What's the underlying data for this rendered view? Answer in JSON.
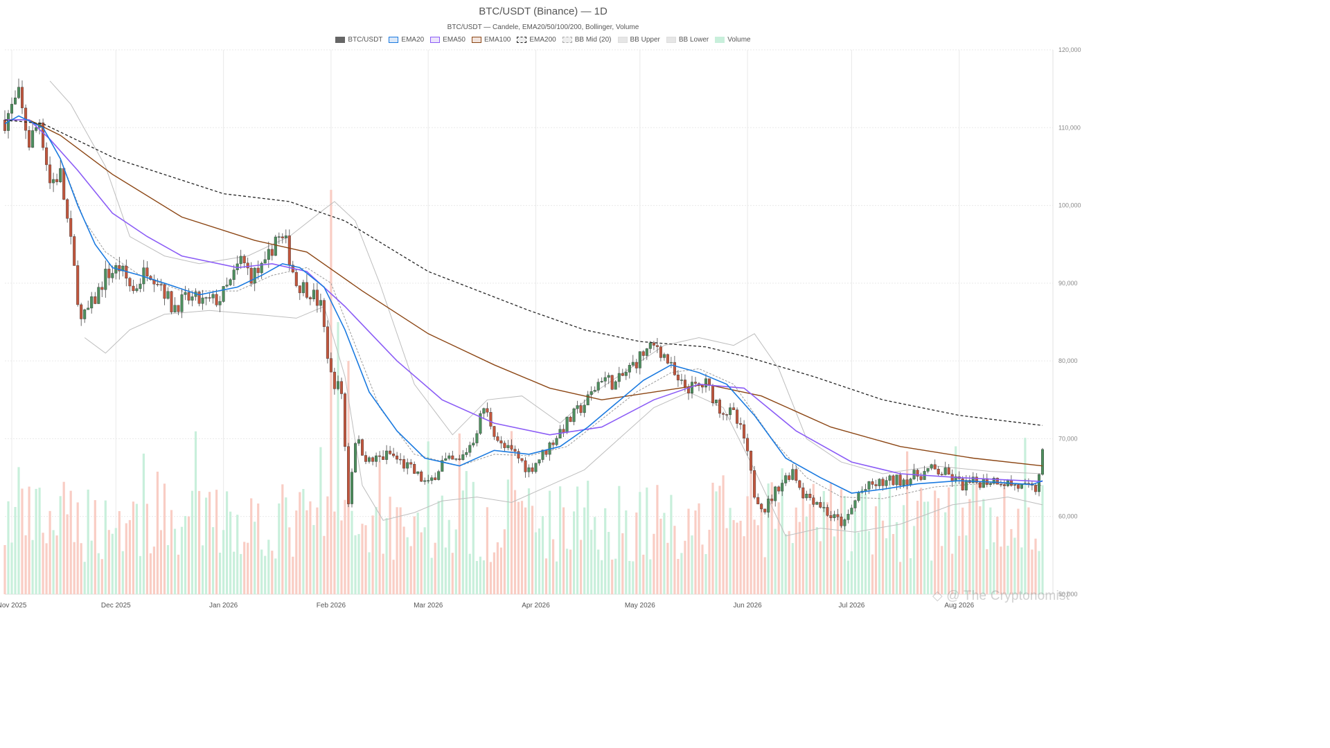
{
  "chart_data": {
    "type": "candlestick",
    "title": "BTC/USDT (Binance) — 1D",
    "subtitle": "BTC/USDT — Candele, EMA20/50/100/200, Bollinger, Volume",
    "legend": [
      {
        "name": "BTC/USDT",
        "fill": "#666666",
        "stroke": "#666666",
        "dash": ""
      },
      {
        "name": "EMA20",
        "fill": "#dbe8f8",
        "stroke": "#1a7ae0",
        "dash": ""
      },
      {
        "name": "EMA50",
        "fill": "#ece4fb",
        "stroke": "#8b5cf6",
        "dash": ""
      },
      {
        "name": "EMA100",
        "fill": "#f1e3dc",
        "stroke": "#8b4513",
        "dash": ""
      },
      {
        "name": "EMA200",
        "fill": "#eeeeee",
        "stroke": "#222222",
        "dash": "3,2"
      },
      {
        "name": "BB Mid (20)",
        "fill": "#eeeeee",
        "stroke": "#aaaaaa",
        "dash": "2,2"
      },
      {
        "name": "BB Upper",
        "fill": "#e6e6e6",
        "stroke": "#dddddd",
        "dash": ""
      },
      {
        "name": "BB Lower",
        "fill": "#e6e6e6",
        "stroke": "#dddddd",
        "dash": ""
      },
      {
        "name": "Volume",
        "fill": "#c8efdb",
        "stroke": "#c8efdb",
        "dash": ""
      }
    ],
    "y_axis": {
      "ticks": [
        "50,000",
        "60,000",
        "70,000",
        "80,000",
        "90,000",
        "100,000",
        "110,000",
        "120,000"
      ],
      "values": [
        50000,
        60000,
        70000,
        80000,
        90000,
        100000,
        110000,
        120000
      ],
      "ylim": [
        50000,
        120000
      ],
      "position": "right"
    },
    "x_axis": {
      "labels": [
        "Nov 2025",
        "Dec 2025",
        "Jan 2026",
        "Feb 2026",
        "Mar 2026",
        "Apr 2026",
        "May 2026",
        "Jun 2026",
        "Jul 2026",
        "Aug 2026"
      ],
      "dates": [
        "2025-11-01",
        "2025-12-01",
        "2026-01-01",
        "2026-02-01",
        "2026-03-01",
        "2026-04-01",
        "2026-05-01",
        "2026-06-01",
        "2026-07-01",
        "2026-08-01"
      ],
      "start": "2025-10-30",
      "end": "2026-08-28"
    },
    "series": {
      "close_path": [
        [
          "2025-10-30",
          111000
        ],
        [
          "2025-11-03",
          114000
        ],
        [
          "2025-11-06",
          108000
        ],
        [
          "2025-11-09",
          111000
        ],
        [
          "2025-11-12",
          103000
        ],
        [
          "2025-11-15",
          104000
        ],
        [
          "2025-11-18",
          95000
        ],
        [
          "2025-11-21",
          85000
        ],
        [
          "2025-11-25",
          88000
        ],
        [
          "2025-11-28",
          91000
        ],
        [
          "2025-12-02",
          92000
        ],
        [
          "2025-12-06",
          89000
        ],
        [
          "2025-12-10",
          92000
        ],
        [
          "2025-12-14",
          90000
        ],
        [
          "2025-12-17",
          87000
        ],
        [
          "2025-12-22",
          88000
        ],
        [
          "2025-12-27",
          87500
        ],
        [
          "2025-12-31",
          88000
        ],
        [
          "2026-01-03",
          90000
        ],
        [
          "2026-01-06",
          93000
        ],
        [
          "2026-01-09",
          91000
        ],
        [
          "2026-01-13",
          92000
        ],
        [
          "2026-01-16",
          96000
        ],
        [
          "2026-01-19",
          95000
        ],
        [
          "2026-01-22",
          90000
        ],
        [
          "2026-01-26",
          89000
        ],
        [
          "2026-01-29",
          87000
        ],
        [
          "2026-02-01",
          78000
        ],
        [
          "2026-02-04",
          76000
        ],
        [
          "2026-02-06",
          62000
        ],
        [
          "2026-02-08",
          70000
        ],
        [
          "2026-02-12",
          67000
        ],
        [
          "2026-02-18",
          68000
        ],
        [
          "2026-02-24",
          66000
        ],
        [
          "2026-03-01",
          64000
        ],
        [
          "2026-03-05",
          67000
        ],
        [
          "2026-03-10",
          67000
        ],
        [
          "2026-03-14",
          70000
        ],
        [
          "2026-03-17",
          74000
        ],
        [
          "2026-03-22",
          69000
        ],
        [
          "2026-03-26",
          68000
        ],
        [
          "2026-03-30",
          66000
        ],
        [
          "2026-04-03",
          68000
        ],
        [
          "2026-04-08",
          71000
        ],
        [
          "2026-04-12",
          73000
        ],
        [
          "2026-04-16",
          75000
        ],
        [
          "2026-04-20",
          78000
        ],
        [
          "2026-04-24",
          77000
        ],
        [
          "2026-04-28",
          79000
        ],
        [
          "2026-05-02",
          81000
        ],
        [
          "2026-05-06",
          82000
        ],
        [
          "2026-05-09",
          80000
        ],
        [
          "2026-05-12",
          77000
        ],
        [
          "2026-05-16",
          76500
        ],
        [
          "2026-05-20",
          77000
        ],
        [
          "2026-05-24",
          74000
        ],
        [
          "2026-05-28",
          73000
        ],
        [
          "2026-05-31",
          70000
        ],
        [
          "2026-06-03",
          63000
        ],
        [
          "2026-06-06",
          61000
        ],
        [
          "2026-06-10",
          64000
        ],
        [
          "2026-06-14",
          66000
        ],
        [
          "2026-06-17",
          63000
        ],
        [
          "2026-06-21",
          62000
        ],
        [
          "2026-06-25",
          60000
        ],
        [
          "2026-06-29",
          59000
        ],
        [
          "2026-07-03",
          63000
        ],
        [
          "2026-07-07",
          64000
        ],
        [
          "2026-07-12",
          64500
        ],
        [
          "2026-07-18",
          65000
        ],
        [
          "2026-07-24",
          66000
        ],
        [
          "2026-07-28",
          65500
        ],
        [
          "2026-08-02",
          64000
        ],
        [
          "2026-08-07",
          64500
        ],
        [
          "2026-08-12",
          64800
        ],
        [
          "2026-08-17",
          64000
        ],
        [
          "2026-08-21",
          63500
        ],
        [
          "2026-08-23",
          63500
        ],
        [
          "2026-08-25",
          68000
        ]
      ],
      "ema20": [
        [
          "2025-10-30",
          110500
        ],
        [
          "2025-11-03",
          111500
        ],
        [
          "2025-11-10",
          110000
        ],
        [
          "2025-11-15",
          106000
        ],
        [
          "2025-11-20",
          100000
        ],
        [
          "2025-11-25",
          95000
        ],
        [
          "2025-11-30",
          92000
        ],
        [
          "2025-12-08",
          91000
        ],
        [
          "2025-12-15",
          90000
        ],
        [
          "2025-12-25",
          88500
        ],
        [
          "2026-01-05",
          89500
        ],
        [
          "2026-01-12",
          91000
        ],
        [
          "2026-01-18",
          92500
        ],
        [
          "2026-01-23",
          92000
        ],
        [
          "2026-01-30",
          89500
        ],
        [
          "2026-02-05",
          84000
        ],
        [
          "2026-02-12",
          76000
        ],
        [
          "2026-02-20",
          71000
        ],
        [
          "2026-02-28",
          67500
        ],
        [
          "2026-03-10",
          66500
        ],
        [
          "2026-03-20",
          68500
        ],
        [
          "2026-03-30",
          68000
        ],
        [
          "2026-04-08",
          69000
        ],
        [
          "2026-04-16",
          71500
        ],
        [
          "2026-04-24",
          74500
        ],
        [
          "2026-05-02",
          77500
        ],
        [
          "2026-05-10",
          79500
        ],
        [
          "2026-05-18",
          78500
        ],
        [
          "2026-05-26",
          77000
        ],
        [
          "2026-06-03",
          73000
        ],
        [
          "2026-06-12",
          67500
        ],
        [
          "2026-06-22",
          65000
        ],
        [
          "2026-07-01",
          63000
        ],
        [
          "2026-07-10",
          63500
        ],
        [
          "2026-07-20",
          64200
        ],
        [
          "2026-08-01",
          64600
        ],
        [
          "2026-08-12",
          64400
        ],
        [
          "2026-08-22",
          64100
        ],
        [
          "2026-08-25",
          64600
        ]
      ],
      "ema50": [
        [
          "2025-10-30",
          111000
        ],
        [
          "2025-11-06",
          111000
        ],
        [
          "2025-11-12",
          108500
        ],
        [
          "2025-11-20",
          104500
        ],
        [
          "2025-11-30",
          99000
        ],
        [
          "2025-12-10",
          96000
        ],
        [
          "2025-12-20",
          93500
        ],
        [
          "2026-01-05",
          92000
        ],
        [
          "2026-01-15",
          92500
        ],
        [
          "2026-01-25",
          91500
        ],
        [
          "2026-02-05",
          87000
        ],
        [
          "2026-02-20",
          80000
        ],
        [
          "2026-03-05",
          75000
        ],
        [
          "2026-03-20",
          72000
        ],
        [
          "2026-04-05",
          70500
        ],
        [
          "2026-04-20",
          71500
        ],
        [
          "2026-05-05",
          75000
        ],
        [
          "2026-05-18",
          77000
        ],
        [
          "2026-05-31",
          76500
        ],
        [
          "2026-06-15",
          71000
        ],
        [
          "2026-07-01",
          67000
        ],
        [
          "2026-07-15",
          65500
        ],
        [
          "2026-08-01",
          65000
        ],
        [
          "2026-08-15",
          64700
        ],
        [
          "2026-08-25",
          64500
        ]
      ],
      "ema100": [
        [
          "2025-10-30",
          111000
        ],
        [
          "2025-11-06",
          111000
        ],
        [
          "2025-11-15",
          109000
        ],
        [
          "2025-11-30",
          104000
        ],
        [
          "2025-12-20",
          98500
        ],
        [
          "2026-01-10",
          95500
        ],
        [
          "2026-01-25",
          94000
        ],
        [
          "2026-02-10",
          89000
        ],
        [
          "2026-03-01",
          83500
        ],
        [
          "2026-03-20",
          79500
        ],
        [
          "2026-04-05",
          76500
        ],
        [
          "2026-04-20",
          75000
        ],
        [
          "2026-05-05",
          76000
        ],
        [
          "2026-05-20",
          77000
        ],
        [
          "2026-06-05",
          75500
        ],
        [
          "2026-06-25",
          71500
        ],
        [
          "2026-07-15",
          69000
        ],
        [
          "2026-08-05",
          67500
        ],
        [
          "2026-08-25",
          66500
        ]
      ],
      "ema200": [
        [
          "2025-10-30",
          111000
        ],
        [
          "2025-11-10",
          110500
        ],
        [
          "2025-12-01",
          106000
        ],
        [
          "2026-01-01",
          101500
        ],
        [
          "2026-01-20",
          100500
        ],
        [
          "2026-02-05",
          98000
        ],
        [
          "2026-03-01",
          91500
        ],
        [
          "2026-03-30",
          86500
        ],
        [
          "2026-04-15",
          84000
        ],
        [
          "2026-05-01",
          82500
        ],
        [
          "2026-05-20",
          81800
        ],
        [
          "2026-06-01",
          80500
        ],
        [
          "2026-06-20",
          78000
        ],
        [
          "2026-07-10",
          75000
        ],
        [
          "2026-08-01",
          73000
        ],
        [
          "2026-08-25",
          71700
        ]
      ],
      "bb_mid": [
        [
          "2025-11-10",
          110000
        ],
        [
          "2025-11-15",
          106000
        ],
        [
          "2025-11-22",
          98000
        ],
        [
          "2025-11-28",
          94000
        ],
        [
          "2025-12-08",
          91000
        ],
        [
          "2025-12-20",
          89000
        ],
        [
          "2026-01-05",
          89000
        ],
        [
          "2026-01-15",
          91000
        ],
        [
          "2026-01-25",
          92000
        ],
        [
          "2026-02-01",
          90000
        ],
        [
          "2026-02-08",
          82000
        ],
        [
          "2026-02-15",
          74000
        ],
        [
          "2026-02-25",
          68000
        ],
        [
          "2026-03-10",
          66500
        ],
        [
          "2026-03-20",
          68000
        ],
        [
          "2026-03-30",
          67800
        ],
        [
          "2026-04-10",
          69000
        ],
        [
          "2026-04-20",
          72500
        ],
        [
          "2026-04-30",
          76000
        ],
        [
          "2026-05-10",
          78500
        ],
        [
          "2026-05-18",
          79000
        ],
        [
          "2026-05-28",
          77000
        ],
        [
          "2026-06-08",
          70000
        ],
        [
          "2026-06-18",
          65000
        ],
        [
          "2026-06-28",
          62500
        ],
        [
          "2026-07-10",
          62300
        ],
        [
          "2026-07-25",
          63800
        ],
        [
          "2026-08-10",
          64300
        ],
        [
          "2026-08-25",
          64000
        ]
      ],
      "bb_upper": [
        [
          "2025-11-12",
          116000
        ],
        [
          "2025-11-18",
          113000
        ],
        [
          "2025-11-28",
          105000
        ],
        [
          "2025-12-05",
          96000
        ],
        [
          "2025-12-15",
          93500
        ],
        [
          "2025-12-25",
          92500
        ],
        [
          "2026-01-08",
          93500
        ],
        [
          "2026-01-20",
          96000
        ],
        [
          "2026-01-30",
          99500
        ],
        [
          "2026-02-02",
          100500
        ],
        [
          "2026-02-08",
          98000
        ],
        [
          "2026-02-15",
          90000
        ],
        [
          "2026-02-25",
          77000
        ],
        [
          "2026-03-08",
          70500
        ],
        [
          "2026-03-18",
          75000
        ],
        [
          "2026-03-28",
          75500
        ],
        [
          "2026-04-08",
          72000
        ],
        [
          "2026-04-18",
          76000
        ],
        [
          "2026-04-28",
          79000
        ],
        [
          "2026-05-08",
          82000
        ],
        [
          "2026-05-18",
          83000
        ],
        [
          "2026-05-28",
          82000
        ],
        [
          "2026-06-03",
          83500
        ],
        [
          "2026-06-10",
          79000
        ],
        [
          "2026-06-18",
          70000
        ],
        [
          "2026-06-28",
          67000
        ],
        [
          "2026-07-10",
          65500
        ],
        [
          "2026-07-25",
          66500
        ],
        [
          "2026-08-10",
          65800
        ],
        [
          "2026-08-25",
          65500
        ]
      ],
      "bb_lower": [
        [
          "2025-11-22",
          83000
        ],
        [
          "2025-11-28",
          81000
        ],
        [
          "2025-12-05",
          84000
        ],
        [
          "2025-12-15",
          86000
        ],
        [
          "2025-12-28",
          86500
        ],
        [
          "2026-01-10",
          86000
        ],
        [
          "2026-01-22",
          85500
        ],
        [
          "2026-01-30",
          87000
        ],
        [
          "2026-02-05",
          78000
        ],
        [
          "2026-02-10",
          64000
        ],
        [
          "2026-02-16",
          59500
        ],
        [
          "2026-02-25",
          60500
        ],
        [
          "2026-03-05",
          62000
        ],
        [
          "2026-03-15",
          62500
        ],
        [
          "2026-03-25",
          61800
        ],
        [
          "2026-04-05",
          64000
        ],
        [
          "2026-04-15",
          66000
        ],
        [
          "2026-04-25",
          70000
        ],
        [
          "2026-05-05",
          74000
        ],
        [
          "2026-05-15",
          76000
        ],
        [
          "2026-05-25",
          74000
        ],
        [
          "2026-06-03",
          66000
        ],
        [
          "2026-06-12",
          57500
        ],
        [
          "2026-06-22",
          58500
        ],
        [
          "2026-07-02",
          58000
        ],
        [
          "2026-07-15",
          59000
        ],
        [
          "2026-07-30",
          61500
        ],
        [
          "2026-08-15",
          62500
        ],
        [
          "2026-08-25",
          61500
        ]
      ],
      "volume_spikes": [
        [
          "2026-02-01",
          102000
        ],
        [
          "2026-02-03",
          85000
        ],
        [
          "2026-02-06",
          80000
        ],
        [
          "2026-06-02",
          67000
        ]
      ]
    },
    "colors": {
      "up": "#4d8f5e",
      "down": "#c2563d",
      "vol_up": "#c8efdb",
      "vol_down": "#f9cdc4",
      "grid": "#e9e9e9"
    }
  },
  "watermark": "◇ @ The Cryptonomist"
}
